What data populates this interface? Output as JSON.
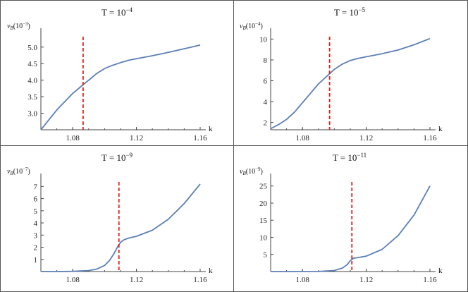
{
  "chart_data": [
    {
      "type": "line",
      "title_base": "T = 10",
      "title_exp": "−4",
      "ylabel_base": "vB(10",
      "ylabel_exp": "−3",
      "ylabel_close": ")",
      "xlabel": "k",
      "xlim": [
        1.06,
        1.16
      ],
      "ylim": [
        2.5,
        5.4
      ],
      "xticks": [
        1.08,
        1.12,
        1.16
      ],
      "yticks": [
        3.0,
        3.5,
        4.0,
        4.5,
        5.0
      ],
      "ytick_labels": [
        "3.0",
        "3.5",
        "4.0",
        "4.5",
        "5.0"
      ],
      "xtick_labels": [
        "1.08",
        "1.12",
        "1.16"
      ],
      "marker_x": 1.0865,
      "series": [
        {
          "x": [
            1.06,
            1.065,
            1.07,
            1.075,
            1.08,
            1.085,
            1.09,
            1.095,
            1.1,
            1.105,
            1.11,
            1.115,
            1.12,
            1.13,
            1.14,
            1.15,
            1.16
          ],
          "y": [
            2.5,
            2.8,
            3.1,
            3.35,
            3.6,
            3.8,
            4.0,
            4.2,
            4.35,
            4.45,
            4.53,
            4.6,
            4.65,
            4.74,
            4.84,
            4.95,
            5.06
          ]
        }
      ],
      "colors": {
        "line": "#5b7fb6",
        "marker": "#e0201a"
      }
    },
    {
      "type": "line",
      "title_base": "T = 10",
      "title_exp": "−5",
      "ylabel_base": "vB(10",
      "ylabel_exp": "−4",
      "ylabel_close": ")",
      "xlabel": "k",
      "xlim": [
        1.06,
        1.16
      ],
      "ylim": [
        1.3,
        10.5
      ],
      "xticks": [
        1.08,
        1.12,
        1.16
      ],
      "yticks": [
        2,
        4,
        6,
        8,
        10
      ],
      "ytick_labels": [
        "2",
        "4",
        "6",
        "8",
        "10"
      ],
      "xtick_labels": [
        "1.08",
        "1.12",
        "1.16"
      ],
      "marker_x": 1.097,
      "series": [
        {
          "x": [
            1.06,
            1.065,
            1.07,
            1.075,
            1.08,
            1.085,
            1.09,
            1.095,
            1.1,
            1.105,
            1.11,
            1.115,
            1.12,
            1.13,
            1.14,
            1.15,
            1.16
          ],
          "y": [
            1.4,
            1.8,
            2.3,
            3.0,
            3.9,
            4.8,
            5.7,
            6.4,
            7.1,
            7.6,
            7.95,
            8.15,
            8.3,
            8.6,
            8.95,
            9.45,
            10.05
          ]
        }
      ],
      "colors": {
        "line": "#5b7fb6",
        "marker": "#e0201a"
      }
    },
    {
      "type": "line",
      "title_base": "T = 10",
      "title_exp": "−9",
      "ylabel_base": "vB(10",
      "ylabel_exp": "−7",
      "ylabel_close": ")",
      "xlabel": "k",
      "xlim": [
        1.06,
        1.16
      ],
      "ylim": [
        0,
        7.6
      ],
      "xticks": [
        1.08,
        1.12,
        1.16
      ],
      "yticks": [
        1,
        2,
        3,
        4,
        5,
        6,
        7
      ],
      "ytick_labels": [
        "1",
        "2",
        "3",
        "4",
        "5",
        "6",
        "7"
      ],
      "xtick_labels": [
        "1.08",
        "1.12",
        "1.16"
      ],
      "marker_x": 1.109,
      "series": [
        {
          "x": [
            1.06,
            1.07,
            1.08,
            1.09,
            1.095,
            1.1,
            1.103,
            1.106,
            1.108,
            1.11,
            1.112,
            1.115,
            1.12,
            1.13,
            1.14,
            1.15,
            1.16
          ],
          "y": [
            0.0,
            0.0,
            0.02,
            0.08,
            0.2,
            0.5,
            0.9,
            1.5,
            2.0,
            2.4,
            2.6,
            2.75,
            2.9,
            3.4,
            4.3,
            5.6,
            7.2
          ]
        }
      ],
      "colors": {
        "line": "#5b7fb6",
        "marker": "#e0201a"
      }
    },
    {
      "type": "line",
      "title_base": "T = 10",
      "title_exp": "−11",
      "ylabel_base": "vB(10",
      "ylabel_exp": "−9",
      "ylabel_close": ")",
      "xlabel": "k",
      "xlim": [
        1.06,
        1.16
      ],
      "ylim": [
        0,
        27
      ],
      "xticks": [
        1.08,
        1.12,
        1.16
      ],
      "yticks": [
        5,
        10,
        15,
        20,
        25
      ],
      "ytick_labels": [
        "5",
        "10",
        "15",
        "20",
        "25"
      ],
      "xtick_labels": [
        "1.08",
        "1.12",
        "1.16"
      ],
      "marker_x": 1.111,
      "series": [
        {
          "x": [
            1.06,
            1.07,
            1.08,
            1.09,
            1.1,
            1.105,
            1.108,
            1.11,
            1.112,
            1.115,
            1.12,
            1.13,
            1.14,
            1.15,
            1.16
          ],
          "y": [
            0.0,
            0.0,
            0.0,
            0.03,
            0.3,
            1.0,
            2.0,
            3.2,
            3.9,
            4.1,
            4.5,
            6.5,
            10.5,
            16.5,
            25.0
          ]
        }
      ],
      "colors": {
        "line": "#5b7fb6",
        "marker": "#e0201a"
      }
    }
  ]
}
